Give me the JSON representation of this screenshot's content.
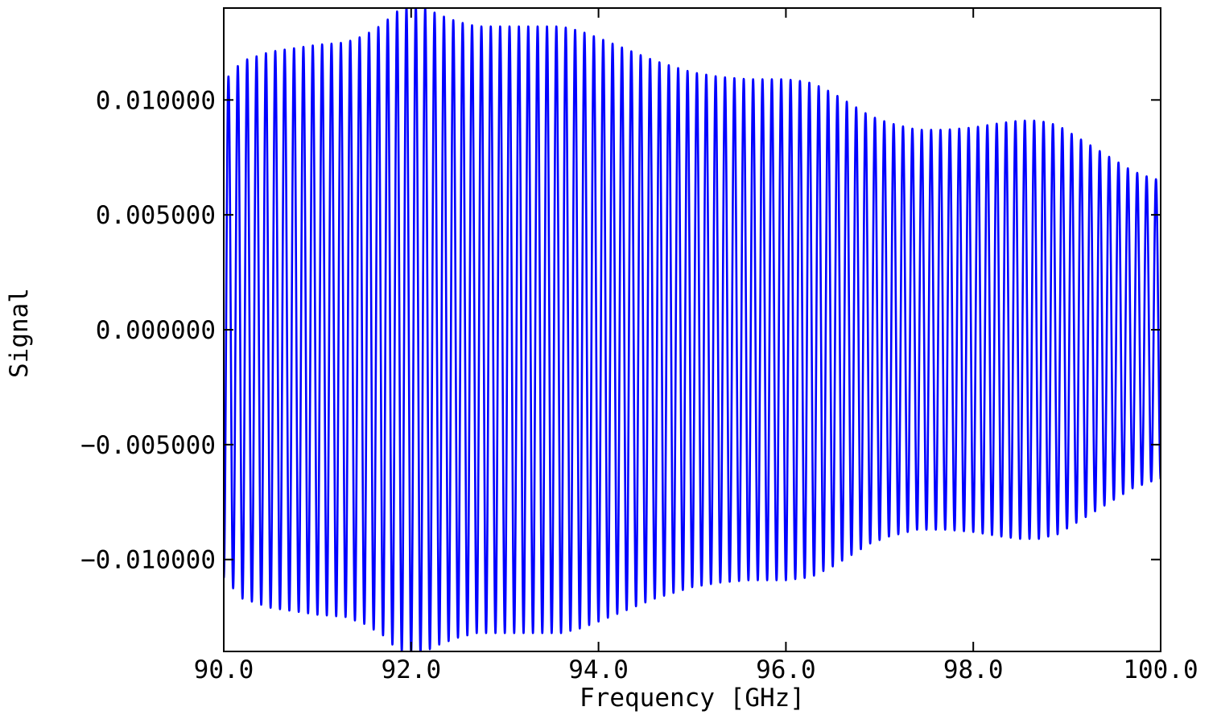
{
  "chart_data": {
    "type": "line",
    "title": "",
    "xlabel": "Frequency [GHz]",
    "ylabel": "Signal",
    "xlim": [
      90.0,
      100.0
    ],
    "ylim": [
      -0.014,
      0.014
    ],
    "grid": false,
    "legend": "none",
    "line_color": "#0000ff",
    "x_ticks": [
      90.0,
      92.0,
      94.0,
      96.0,
      98.0,
      100.0
    ],
    "x_tick_labels": [
      "90.0",
      "92.0",
      "94.0",
      "96.0",
      "98.0",
      "100.0"
    ],
    "y_ticks": [
      0.01,
      0.005,
      0.0,
      -0.005,
      -0.01
    ],
    "y_tick_labels": [
      "0.010000",
      "0.005000",
      "0.000000",
      "−0.005000",
      "−0.010000"
    ],
    "signal_period_ghz": 0.1,
    "envelope": {
      "freq": [
        90.0,
        90.2,
        90.5,
        91.0,
        91.3,
        91.5,
        91.7,
        91.8,
        91.9,
        92.0,
        92.1,
        92.2,
        92.3,
        92.5,
        92.7,
        93.0,
        93.3,
        93.6,
        93.8,
        94.0,
        94.3,
        94.6,
        95.0,
        95.3,
        95.6,
        96.0,
        96.2,
        96.3,
        96.5,
        96.7,
        96.9,
        97.1,
        97.4,
        97.7,
        98.0,
        98.3,
        98.5,
        98.7,
        98.9,
        99.1,
        99.3,
        99.5,
        99.7,
        99.9,
        100.0
      ],
      "amplitude": [
        0.0108,
        0.0117,
        0.0121,
        0.0124,
        0.0125,
        0.0128,
        0.0133,
        0.0137,
        0.014,
        0.0141,
        0.0141,
        0.0139,
        0.0137,
        0.0134,
        0.0132,
        0.0132,
        0.0132,
        0.0132,
        0.013,
        0.0127,
        0.0122,
        0.0117,
        0.0112,
        0.011,
        0.0109,
        0.0109,
        0.0108,
        0.0107,
        0.0103,
        0.0098,
        0.0093,
        0.009,
        0.0087,
        0.0087,
        0.0088,
        0.009,
        0.0091,
        0.0091,
        0.0089,
        0.0084,
        0.0079,
        0.0074,
        0.0069,
        0.0066,
        0.0065
      ]
    }
  }
}
